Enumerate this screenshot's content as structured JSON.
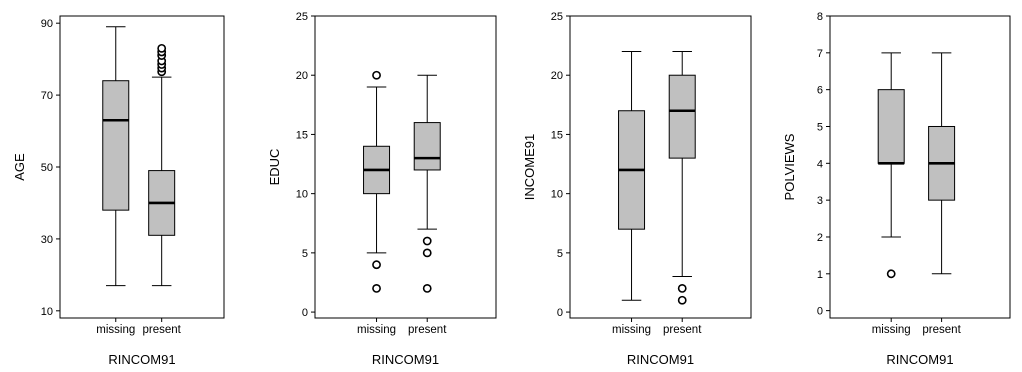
{
  "chart_data": [
    {
      "type": "box",
      "ylabel": "AGE",
      "xlabel": "RINCOM91",
      "categories": [
        "missing",
        "present"
      ],
      "ylim": [
        8,
        92
      ],
      "yticks": [
        10,
        30,
        50,
        70,
        90
      ],
      "boxes": [
        {
          "category": "missing",
          "min": 17,
          "q1": 38,
          "median": 63,
          "q3": 74,
          "max": 89,
          "outliers": []
        },
        {
          "category": "present",
          "min": 17,
          "q1": 31,
          "median": 40,
          "q3": 49,
          "max": 75,
          "outliers": [
            76.5,
            77.5,
            78.5,
            79.5,
            81,
            82,
            83
          ]
        }
      ]
    },
    {
      "type": "box",
      "ylabel": "EDUC",
      "xlabel": "RINCOM91",
      "categories": [
        "missing",
        "present"
      ],
      "ylim": [
        -0.5,
        25
      ],
      "yticks": [
        0,
        5,
        10,
        15,
        20,
        25
      ],
      "boxes": [
        {
          "category": "missing",
          "min": 5,
          "q1": 10,
          "median": 12,
          "q3": 14,
          "max": 19,
          "outliers": [
            20,
            4,
            2
          ]
        },
        {
          "category": "present",
          "min": 7,
          "q1": 12,
          "median": 13,
          "q3": 16,
          "max": 20,
          "outliers": [
            6,
            5,
            2
          ]
        }
      ]
    },
    {
      "type": "box",
      "ylabel": "INCOME91",
      "xlabel": "RINCOM91",
      "categories": [
        "missing",
        "present"
      ],
      "ylim": [
        -0.5,
        25
      ],
      "yticks": [
        0,
        5,
        10,
        15,
        20,
        25
      ],
      "boxes": [
        {
          "category": "missing",
          "min": 1,
          "q1": 7,
          "median": 12,
          "q3": 17,
          "max": 22,
          "outliers": []
        },
        {
          "category": "present",
          "min": 3,
          "q1": 13,
          "median": 17,
          "q3": 20,
          "max": 22,
          "outliers": [
            2,
            1
          ]
        }
      ]
    },
    {
      "type": "box",
      "ylabel": "POLVIEWS",
      "xlabel": "RINCOM91",
      "categories": [
        "missing",
        "present"
      ],
      "ylim": [
        -0.2,
        8
      ],
      "yticks": [
        0,
        1,
        2,
        3,
        4,
        5,
        6,
        7,
        8
      ],
      "boxes": [
        {
          "category": "missing",
          "min": 2,
          "q1": 4,
          "median": 4,
          "q3": 6,
          "max": 7,
          "outliers": [
            1
          ]
        },
        {
          "category": "present",
          "min": 1,
          "q1": 3,
          "median": 4,
          "q3": 5,
          "max": 7,
          "outliers": []
        }
      ]
    }
  ],
  "colors": {
    "box_fill": "#c0c0c0",
    "line": "#000000",
    "background": "#ffffff"
  }
}
